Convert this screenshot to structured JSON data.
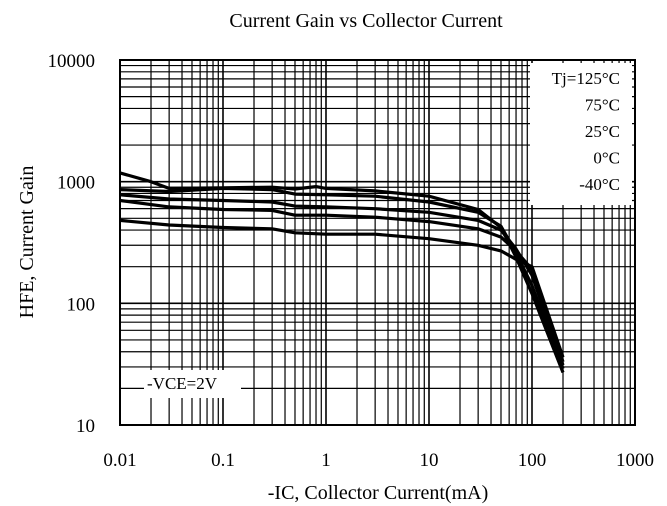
{
  "chart_data": {
    "type": "line",
    "title": "Current Gain vs Collector Current",
    "xlabel": "-IC, Collector Current(mA)",
    "ylabel": "HFE, Current Gain",
    "x_scale": "log",
    "y_scale": "log",
    "xlim": [
      0.01,
      1000
    ],
    "ylim": [
      10,
      10000
    ],
    "x_tick_labels": [
      "0.01",
      "0.1",
      "1",
      "10",
      "100",
      "1000"
    ],
    "y_tick_labels": [
      "10",
      "100",
      "1000",
      "10000"
    ],
    "grid": true,
    "legend_position": "top-right",
    "legend_entries": [
      "Tj=125°C",
      "75°C",
      "25°C",
      "0°C",
      "-40°C"
    ],
    "annotation": "-VCE=2V",
    "series": [
      {
        "name": "Tj=125°C",
        "x": [
          0.01,
          0.02,
          0.03,
          0.1,
          0.3,
          0.5,
          0.8,
          1,
          3,
          10,
          30,
          50,
          70,
          100,
          200
        ],
        "y": [
          1180,
          1000,
          880,
          890,
          900,
          870,
          910,
          880,
          840,
          760,
          590,
          420,
          240,
          120,
          27
        ]
      },
      {
        "name": "75°C",
        "x": [
          0.01,
          0.03,
          0.1,
          0.3,
          0.5,
          1,
          3,
          10,
          30,
          50,
          70,
          100,
          200
        ],
        "y": [
          860,
          830,
          880,
          860,
          790,
          780,
          760,
          680,
          560,
          430,
          260,
          140,
          29
        ]
      },
      {
        "name": "25°C",
        "x": [
          0.01,
          0.03,
          0.1,
          0.3,
          0.5,
          1,
          3,
          10,
          30,
          50,
          70,
          100,
          200
        ],
        "y": [
          780,
          720,
          700,
          680,
          630,
          620,
          600,
          560,
          480,
          400,
          280,
          170,
          31
        ]
      },
      {
        "name": "0°C",
        "x": [
          0.01,
          0.03,
          0.1,
          0.3,
          0.5,
          1,
          3,
          10,
          30,
          50,
          70,
          100,
          200
        ],
        "y": [
          700,
          620,
          590,
          580,
          530,
          530,
          510,
          470,
          410,
          350,
          270,
          190,
          33
        ]
      },
      {
        "name": "-40°C",
        "x": [
          0.01,
          0.03,
          0.1,
          0.3,
          0.5,
          1,
          3,
          10,
          30,
          50,
          70,
          100,
          200
        ],
        "y": [
          480,
          440,
          420,
          410,
          380,
          370,
          370,
          340,
          300,
          270,
          230,
          200,
          36
        ]
      }
    ]
  }
}
